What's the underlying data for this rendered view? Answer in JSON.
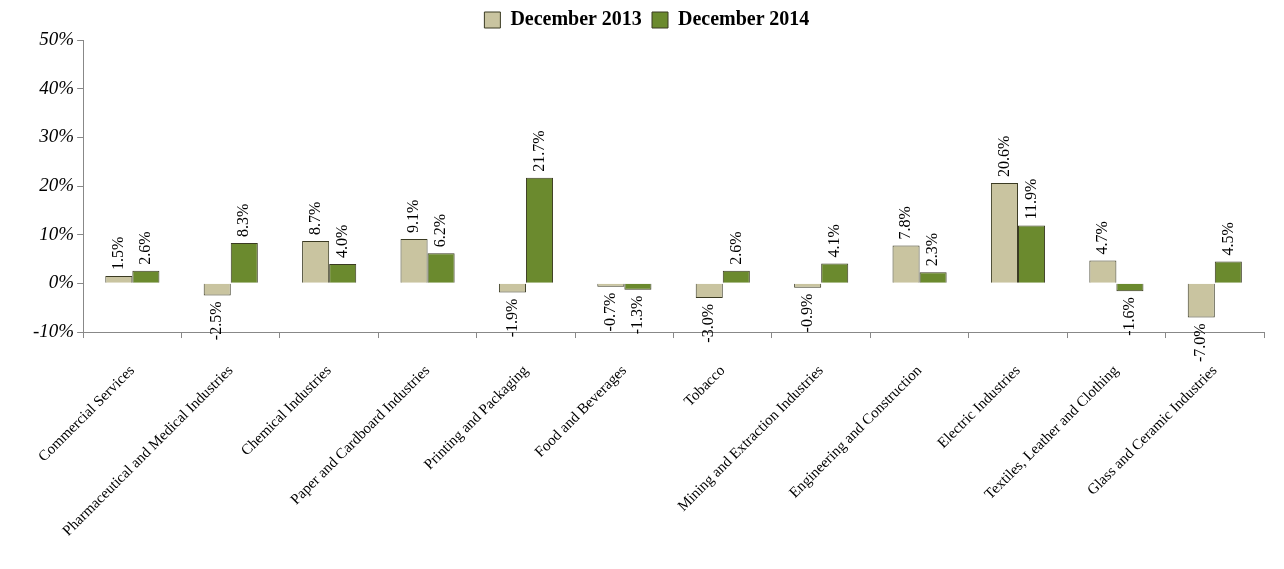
{
  "chart_data": {
    "type": "bar",
    "categories": [
      "Commercial Services",
      "Pharmaceutical and Medical Industries",
      "Chemical Industries",
      "Paper and Cardboard Industries",
      "Printing and Packaging",
      "Food and Beverages",
      "Tobacco",
      "Mining and Extraction Industries",
      "Engineering and Construction",
      "Electric Industries",
      "Textiles, Leather and Clothing",
      "Glass and Ceramic Industries"
    ],
    "series": [
      {
        "name": "December 2013",
        "color": "#c9c4a0",
        "values": [
          1.5,
          -2.5,
          8.7,
          9.1,
          -1.9,
          -0.7,
          -3.0,
          -0.9,
          7.8,
          20.6,
          4.7,
          -7.0
        ],
        "value_labels": [
          "1.5%",
          "-2.5%",
          "8.7%",
          "9.1%",
          "-1.9%",
          "-0.7%",
          "-3.0%",
          "-0.9%",
          "7.8%",
          "20.6%",
          "4.7%",
          "-7.0%"
        ]
      },
      {
        "name": "December 2014",
        "color": "#6b8a2e",
        "values": [
          2.6,
          8.3,
          4.0,
          6.2,
          21.7,
          -1.3,
          2.6,
          4.1,
          2.3,
          11.9,
          -1.6,
          4.5
        ],
        "value_labels": [
          "2.6%",
          "8.3%",
          "4.0%",
          "6.2%",
          "21.7%",
          "-1.3%",
          "2.6%",
          "4.1%",
          "2.3%",
          "11.9%",
          "-1.6%",
          "4.5%"
        ]
      }
    ],
    "ylim": [
      -10,
      50
    ],
    "yticks": [
      {
        "value": -10,
        "label": "-10%"
      },
      {
        "value": 0,
        "label": "0%"
      },
      {
        "value": 10,
        "label": "10%"
      },
      {
        "value": 20,
        "label": "20%"
      },
      {
        "value": 30,
        "label": "30%"
      },
      {
        "value": 40,
        "label": "40%"
      },
      {
        "value": 50,
        "label": "50%"
      }
    ],
    "legend": "top",
    "grid": false
  }
}
